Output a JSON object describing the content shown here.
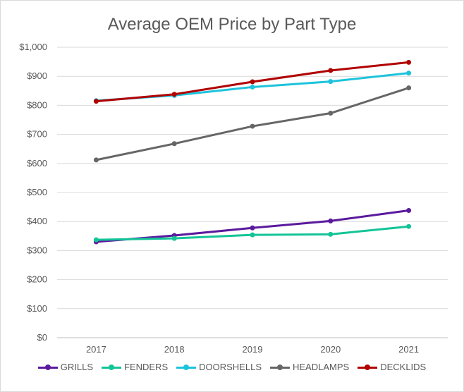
{
  "chart_data": {
    "type": "line",
    "title": "Average OEM Price by Part Type",
    "xlabel": "",
    "ylabel": "",
    "categories": [
      "2017",
      "2018",
      "2019",
      "2020",
      "2021"
    ],
    "ylim": [
      0,
      1000
    ],
    "yticks": [
      "$0",
      "$100",
      "$200",
      "$300",
      "$400",
      "$500",
      "$600",
      "$700",
      "$800",
      "$900",
      "$1,000"
    ],
    "grid": true,
    "legend_position": "bottom",
    "series": [
      {
        "name": "GRILLS",
        "color": "#5b1a9e",
        "values": [
          330,
          352,
          378,
          402,
          438
        ]
      },
      {
        "name": "FENDERS",
        "color": "#13c497",
        "values": [
          337,
          342,
          354,
          356,
          383
        ]
      },
      {
        "name": "DOORSHELLS",
        "color": "#1ec3dc",
        "values": [
          816,
          834,
          863,
          882,
          911
        ]
      },
      {
        "name": "HEADLAMPS",
        "color": "#666666",
        "values": [
          612,
          668,
          728,
          773,
          860
        ]
      },
      {
        "name": "DECKLIDS",
        "color": "#b00000",
        "values": [
          814,
          838,
          881,
          920,
          948
        ]
      }
    ]
  }
}
